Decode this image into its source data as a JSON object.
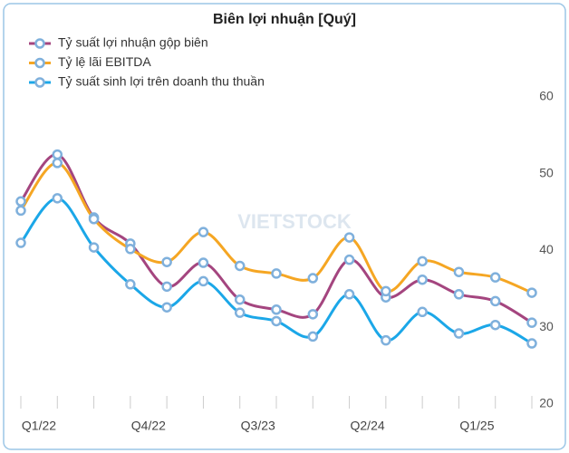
{
  "chart_data": {
    "type": "line",
    "title": "Biên lợi nhuận [Quý]",
    "watermark": "VIETSTOCK",
    "categories": [
      "Q1/22",
      null,
      null,
      "Q4/22",
      null,
      null,
      "Q3/23",
      null,
      null,
      "Q2/24",
      null,
      null,
      "Q1/25",
      null,
      null
    ],
    "series": [
      {
        "name": "Tỷ suất lợi nhuận gộp biên",
        "color": "#a4457f",
        "values": [
          46.4,
          52.5,
          44.3,
          40.9,
          35.3,
          38.4,
          33.6,
          32.3,
          31.7,
          38.8,
          33.9,
          36.2,
          34.3,
          33.4,
          30.6
        ]
      },
      {
        "name": "Tỷ lệ lãi EBITDA",
        "color": "#f5a623",
        "values": [
          45.2,
          51.4,
          44.1,
          40.2,
          38.5,
          42.4,
          38.0,
          37.0,
          36.4,
          41.7,
          34.7,
          38.6,
          37.2,
          36.5,
          34.5
        ]
      },
      {
        "name": "Tỷ suất sinh lợi trên doanh thu thuần",
        "color": "#1ba7e8",
        "values": [
          41.0,
          46.8,
          40.4,
          35.6,
          32.6,
          36.0,
          31.9,
          30.8,
          28.8,
          34.3,
          28.3,
          32.0,
          29.2,
          30.3,
          27.9
        ]
      }
    ],
    "ylim": [
      20,
      60
    ],
    "yticks": [
      20,
      30,
      40,
      50,
      60
    ],
    "grid": false,
    "legend": "top-left"
  }
}
